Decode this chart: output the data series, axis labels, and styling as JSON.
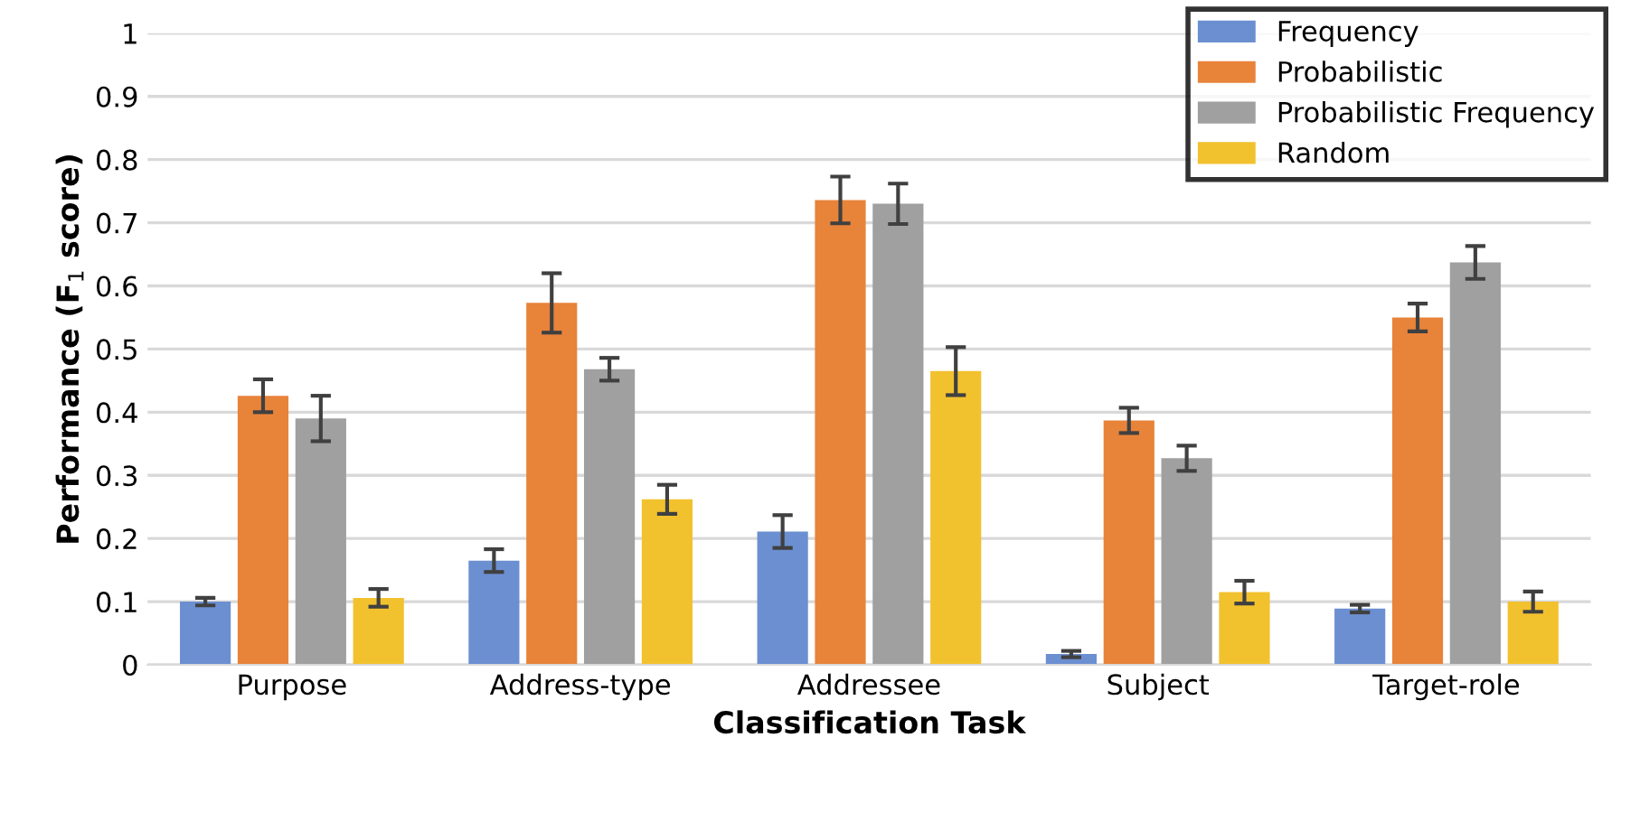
{
  "chart_data": {
    "type": "bar",
    "xlabel": "Classification Task",
    "ylabel": "Performance (F$_{1}$ score)",
    "categories": [
      "Purpose",
      "Address-type",
      "Addressee",
      "Subject",
      "Target-role"
    ],
    "series": [
      {
        "name": "Frequency",
        "color": "#6b8fd0",
        "values": [
          0.1,
          0.165,
          0.211,
          0.017,
          0.089
        ],
        "errors": [
          0.006,
          0.018,
          0.026,
          0.005,
          0.006
        ]
      },
      {
        "name": "Probabilistic",
        "color": "#e8833a",
        "values": [
          0.426,
          0.573,
          0.736,
          0.387,
          0.55
        ],
        "errors": [
          0.026,
          0.047,
          0.037,
          0.02,
          0.022
        ]
      },
      {
        "name": "Probabilistic Frequency",
        "color": "#a0a0a0",
        "values": [
          0.39,
          0.468,
          0.73,
          0.327,
          0.637
        ],
        "errors": [
          0.036,
          0.018,
          0.032,
          0.02,
          0.026
        ]
      },
      {
        "name": "Random",
        "color": "#f2c12e",
        "values": [
          0.106,
          0.262,
          0.465,
          0.115,
          0.1
        ],
        "errors": [
          0.014,
          0.023,
          0.038,
          0.018,
          0.016
        ]
      }
    ],
    "ylim": [
      0,
      1
    ],
    "yticks": [
      0,
      0.1,
      0.2,
      0.3,
      0.4,
      0.5,
      0.6,
      0.7,
      0.8,
      0.9,
      1
    ],
    "grid": "y",
    "legend": "top right"
  }
}
